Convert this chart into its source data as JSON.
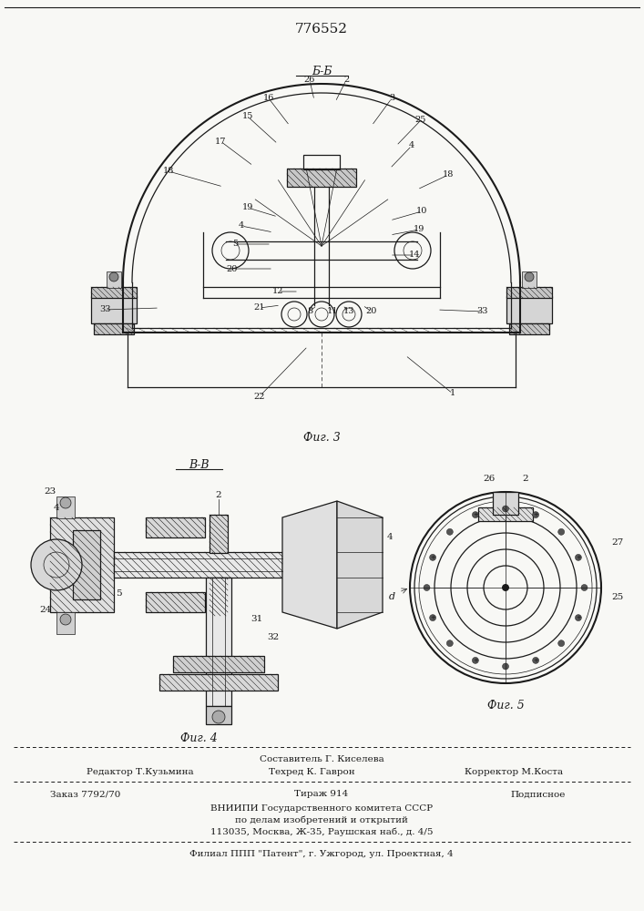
{
  "patent_number": "776552",
  "bg_color": "#f8f8f5",
  "line_color": "#1a1a1a",
  "fig3_label": "Фиг. 3",
  "fig4_label": "Фиг. 4",
  "fig5_label": "Фиг. 5",
  "section_bb": "Б-Б",
  "section_vv": "В-В",
  "footer_line1_left": "Редактор Т.Кузьмина",
  "footer_line1_center": "Составитель Г. Киселева",
  "footer_line2_center": "Техред К. Гаврон",
  "footer_line2_right": "Корректор М.Коста",
  "footer_order": "Заказ 7792/70",
  "footer_tirazh": "Тираж 914",
  "footer_podpisnoe": "Подписное",
  "footer_vniip1": "ВНИИПИ Государственного комитета СССР",
  "footer_vniip2": "по делам изобретений и открытий",
  "footer_vniip3": "113035, Москва, Ж-35, Раушская наб., д. 4/5",
  "footer_filial": "Филиал ППП \"Патент\", г. Ужгород, ул. Проектная, 4"
}
